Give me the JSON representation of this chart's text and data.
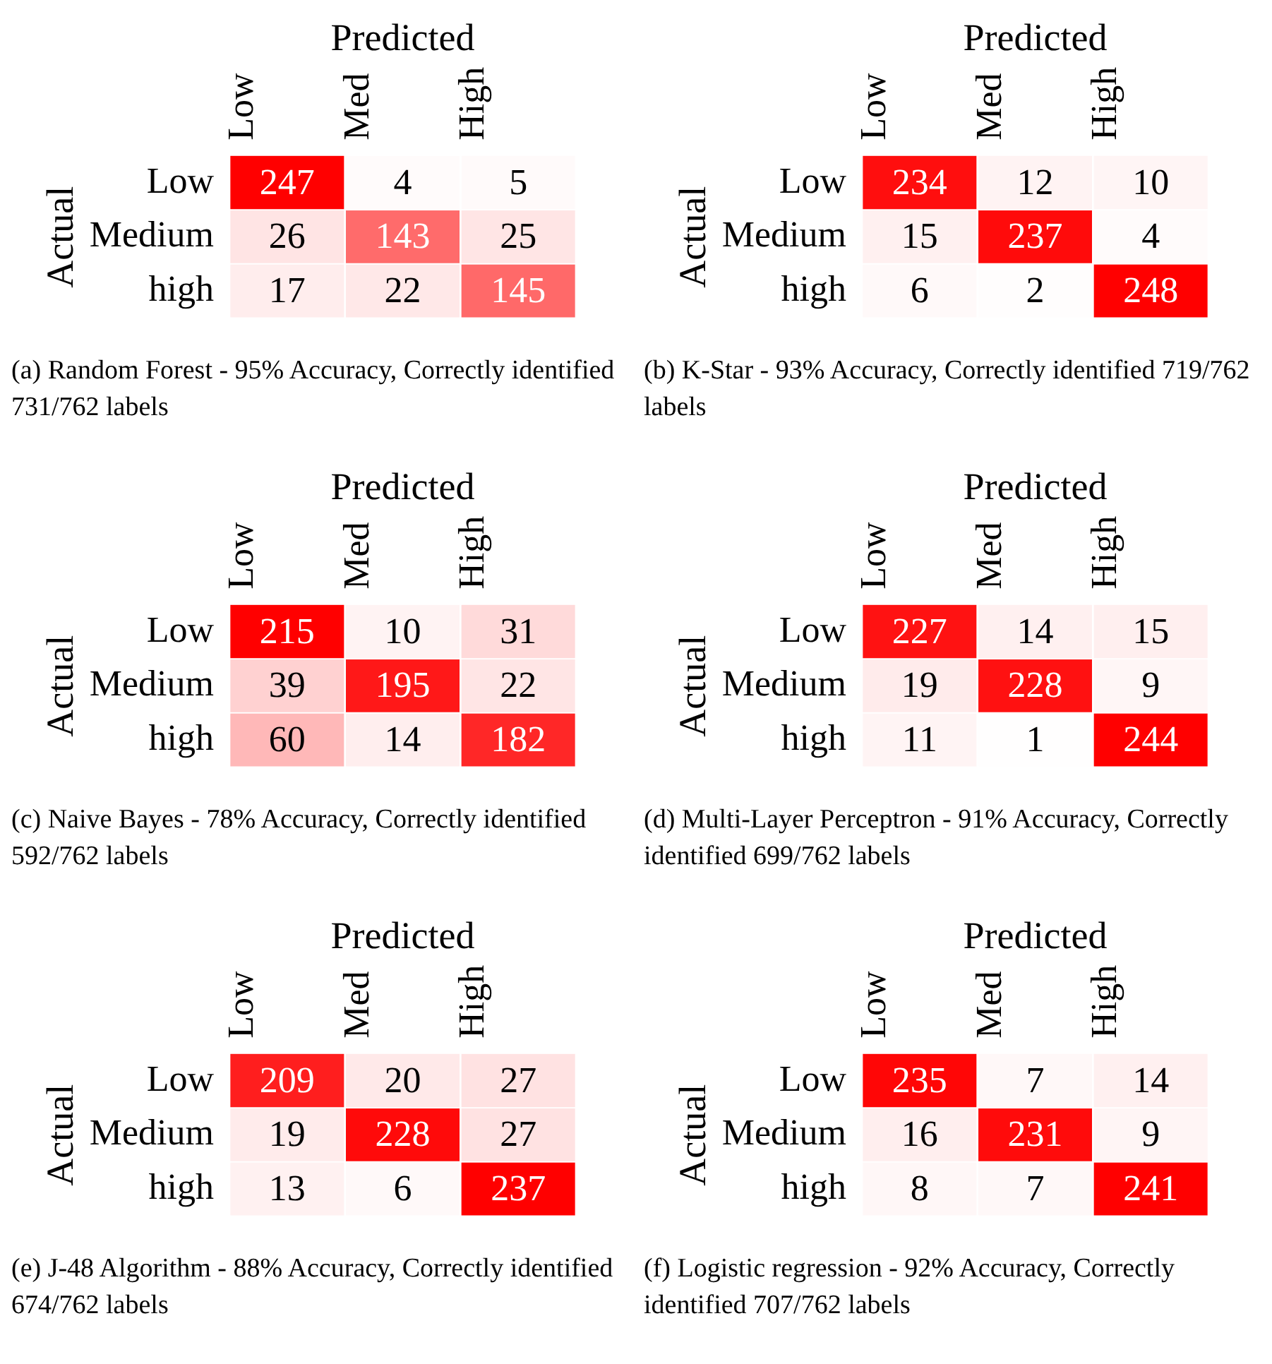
{
  "chart_data": [
    {
      "type": "heatmap",
      "xlabel": "Predicted",
      "ylabel": "Actual",
      "categories": [
        "Low",
        "Med",
        "High"
      ],
      "y_categories": [
        "Low",
        "Medium",
        "high"
      ],
      "color": "#ff0000",
      "data_labels": true,
      "cells": [
        [
          247,
          4,
          5
        ],
        [
          26,
          143,
          25
        ],
        [
          17,
          22,
          145
        ]
      ],
      "annotations": [
        "(a) Random Forest - 95% Accuracy, Correctly identified 731/762 labels"
      ]
    },
    {
      "type": "heatmap",
      "xlabel": "Predicted",
      "ylabel": "Actual",
      "categories": [
        "Low",
        "Med",
        "High"
      ],
      "y_categories": [
        "Low",
        "Medium",
        "high"
      ],
      "color": "#ff0000",
      "data_labels": true,
      "cells": [
        [
          234,
          12,
          10
        ],
        [
          15,
          237,
          4
        ],
        [
          6,
          2,
          248
        ]
      ],
      "annotations": [
        "(b) K-Star - 93% Accuracy, Correctly identified 719/762 labels"
      ]
    },
    {
      "type": "heatmap",
      "xlabel": "Predicted",
      "ylabel": "Actual",
      "categories": [
        "Low",
        "Med",
        "High"
      ],
      "y_categories": [
        "Low",
        "Medium",
        "high"
      ],
      "color": "#ff0000",
      "data_labels": true,
      "cells": [
        [
          215,
          10,
          31
        ],
        [
          39,
          195,
          22
        ],
        [
          60,
          14,
          182
        ]
      ],
      "annotations": [
        "(c) Naive Bayes - 78% Accuracy, Correctly identified 592/762 labels"
      ]
    },
    {
      "type": "heatmap",
      "xlabel": "Predicted",
      "ylabel": "Actual",
      "categories": [
        "Low",
        "Med",
        "High"
      ],
      "y_categories": [
        "Low",
        "Medium",
        "high"
      ],
      "color": "#ff0000",
      "data_labels": true,
      "cells": [
        [
          227,
          14,
          15
        ],
        [
          19,
          228,
          9
        ],
        [
          11,
          1,
          244
        ]
      ],
      "annotations": [
        "(d) Multi-Layer Perceptron - 91% Accuracy, Correctly identified 699/762 labels"
      ]
    },
    {
      "type": "heatmap",
      "xlabel": "Predicted",
      "ylabel": "Actual",
      "categories": [
        "Low",
        "Med",
        "High"
      ],
      "y_categories": [
        "Low",
        "Medium",
        "high"
      ],
      "color": "#ff0000",
      "data_labels": true,
      "cells": [
        [
          209,
          20,
          27
        ],
        [
          19,
          228,
          27
        ],
        [
          13,
          6,
          237
        ]
      ],
      "annotations": [
        "(e) J-48 Algorithm - 88% Accuracy, Correctly identified 674/762 labels"
      ]
    },
    {
      "type": "heatmap",
      "xlabel": "Predicted",
      "ylabel": "Actual",
      "categories": [
        "Low",
        "Med",
        "High"
      ],
      "y_categories": [
        "Low",
        "Medium",
        "high"
      ],
      "color": "#ff0000",
      "data_labels": true,
      "cells": [
        [
          235,
          7,
          14
        ],
        [
          16,
          231,
          9
        ],
        [
          8,
          7,
          241
        ]
      ],
      "annotations": [
        "(f) Logistic regression - 92% Accuracy, Correctly identified 707/762 labels"
      ]
    }
  ]
}
